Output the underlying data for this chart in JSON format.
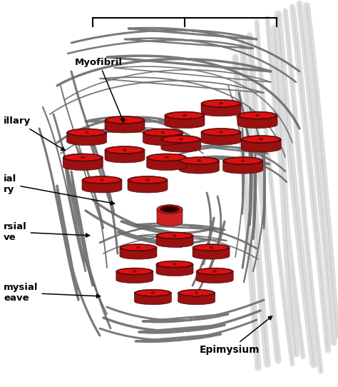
{
  "background_color": "#ffffff",
  "myofibril_top": "#dd1111",
  "myofibril_side": "#991111",
  "myofibril_rim": "#771111",
  "myofibril_edge": "#330000",
  "perimysium_color": "#666666",
  "epimysium_color": "#dddddd",
  "epimysium_edge": "#aaaaaa",
  "capillary_outer": "#cc2222",
  "capillary_inner": "#550000",
  "capillary_lumen": "#220000",
  "labels": {
    "myofibril": "Myofibril",
    "capillary": "illary",
    "endomysial": "ial\nry",
    "perimysial": "rsial\nve",
    "epimysial": "mysial\neave",
    "epimysium": "Epimysium"
  }
}
